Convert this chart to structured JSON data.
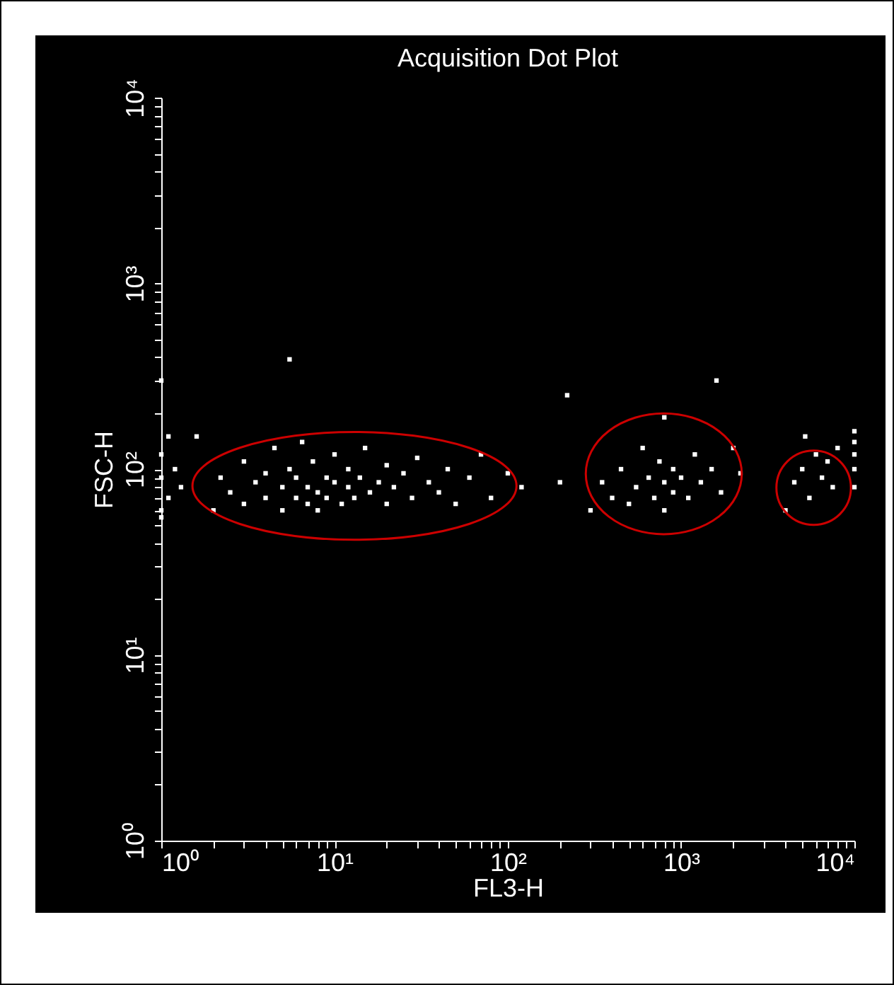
{
  "chart_data": {
    "type": "scatter",
    "title": "Acquisition Dot Plot",
    "xlabel": "FL3-H",
    "ylabel": "FSC-H",
    "log": "xy",
    "grid": false,
    "marker": "square",
    "legend": false,
    "xlim": [
      1,
      10000
    ],
    "ylim": [
      1,
      10000
    ],
    "xticks": [
      {
        "value": 1,
        "label": "10⁰"
      },
      {
        "value": 2,
        "label": null
      },
      {
        "value": 3,
        "label": null
      },
      {
        "value": 4,
        "label": null
      },
      {
        "value": 5,
        "label": null
      },
      {
        "value": 6,
        "label": null
      },
      {
        "value": 7,
        "label": null
      },
      {
        "value": 8,
        "label": null
      },
      {
        "value": 9,
        "label": null
      },
      {
        "value": 10,
        "label": "10¹"
      },
      {
        "value": 20,
        "label": null
      },
      {
        "value": 30,
        "label": null
      },
      {
        "value": 40,
        "label": null
      },
      {
        "value": 50,
        "label": null
      },
      {
        "value": 60,
        "label": null
      },
      {
        "value": 70,
        "label": null
      },
      {
        "value": 80,
        "label": null
      },
      {
        "value": 90,
        "label": null
      },
      {
        "value": 100,
        "label": "10²"
      },
      {
        "value": 200,
        "label": null
      },
      {
        "value": 300,
        "label": null
      },
      {
        "value": 400,
        "label": null
      },
      {
        "value": 500,
        "label": null
      },
      {
        "value": 600,
        "label": null
      },
      {
        "value": 700,
        "label": null
      },
      {
        "value": 800,
        "label": null
      },
      {
        "value": 900,
        "label": null
      },
      {
        "value": 1000,
        "label": "10³"
      },
      {
        "value": 2000,
        "label": null
      },
      {
        "value": 3000,
        "label": null
      },
      {
        "value": 4000,
        "label": null
      },
      {
        "value": 5000,
        "label": null
      },
      {
        "value": 6000,
        "label": null
      },
      {
        "value": 7000,
        "label": null
      },
      {
        "value": 8000,
        "label": null
      },
      {
        "value": 9000,
        "label": null
      },
      {
        "value": 10000,
        "label": "10⁴"
      }
    ],
    "yticks": [
      {
        "value": 1,
        "label": "10⁰"
      },
      {
        "value": 2,
        "label": null
      },
      {
        "value": 3,
        "label": null
      },
      {
        "value": 4,
        "label": null
      },
      {
        "value": 5,
        "label": null
      },
      {
        "value": 6,
        "label": null
      },
      {
        "value": 7,
        "label": null
      },
      {
        "value": 8,
        "label": null
      },
      {
        "value": 9,
        "label": null
      },
      {
        "value": 10,
        "label": "10¹"
      },
      {
        "value": 20,
        "label": null
      },
      {
        "value": 30,
        "label": null
      },
      {
        "value": 40,
        "label": null
      },
      {
        "value": 50,
        "label": null
      },
      {
        "value": 60,
        "label": null
      },
      {
        "value": 70,
        "label": null
      },
      {
        "value": 80,
        "label": null
      },
      {
        "value": 90,
        "label": null
      },
      {
        "value": 100,
        "label": "10²"
      },
      {
        "value": 200,
        "label": null
      },
      {
        "value": 300,
        "label": null
      },
      {
        "value": 400,
        "label": null
      },
      {
        "value": 500,
        "label": null
      },
      {
        "value": 600,
        "label": null
      },
      {
        "value": 700,
        "label": null
      },
      {
        "value": 800,
        "label": null
      },
      {
        "value": 900,
        "label": null
      },
      {
        "value": 1000,
        "label": "10³"
      },
      {
        "value": 2000,
        "label": null
      },
      {
        "value": 3000,
        "label": null
      },
      {
        "value": 4000,
        "label": null
      },
      {
        "value": 5000,
        "label": null
      },
      {
        "value": 6000,
        "label": null
      },
      {
        "value": 7000,
        "label": null
      },
      {
        "value": 8000,
        "label": null
      },
      {
        "value": 9000,
        "label": null
      },
      {
        "value": 10000,
        "label": "10⁴"
      }
    ],
    "series": [
      {
        "color": "#ffffff",
        "x": [
          1,
          1,
          1.1,
          1,
          1.2,
          1.1,
          1,
          1.3,
          1.6,
          2,
          2.2,
          2.5,
          3,
          3,
          3.5,
          4,
          4,
          4.5,
          5,
          5,
          5.5,
          6,
          6,
          6.5,
          7,
          7,
          7.5,
          8,
          8,
          9,
          9,
          10,
          10,
          11,
          12,
          12,
          13,
          14,
          15,
          16,
          18,
          20,
          20,
          22,
          25,
          28,
          30,
          35,
          40,
          45,
          50,
          60,
          70,
          80,
          100,
          120,
          5.5,
          1,
          220,
          200,
          300,
          350,
          400,
          450,
          500,
          550,
          600,
          650,
          700,
          750,
          800,
          800,
          900,
          900,
          1000,
          1100,
          1200,
          1300,
          1500,
          1700,
          2000,
          2200,
          1600,
          800,
          4000,
          4500,
          5000,
          5500,
          6000,
          6500,
          7000,
          7500,
          5200,
          8000,
          10000,
          10000,
          10000,
          10000,
          10000
        ],
        "values": [
          120,
          90,
          70,
          60,
          100,
          150,
          55,
          80,
          150,
          60,
          90,
          75,
          110,
          65,
          85,
          70,
          95,
          130,
          60,
          80,
          100,
          70,
          90,
          140,
          65,
          80,
          110,
          75,
          60,
          90,
          70,
          85,
          120,
          65,
          80,
          100,
          70,
          90,
          130,
          75,
          85,
          65,
          105,
          80,
          95,
          70,
          115,
          85,
          75,
          100,
          65,
          90,
          120,
          70,
          95,
          80,
          390,
          300,
          250,
          85,
          60,
          85,
          70,
          100,
          65,
          80,
          130,
          90,
          70,
          110,
          60,
          85,
          100,
          75,
          90,
          70,
          120,
          85,
          100,
          75,
          130,
          95,
          300,
          190,
          60,
          85,
          100,
          70,
          120,
          90,
          110,
          80,
          150,
          130,
          80,
          100,
          120,
          140,
          160
        ]
      }
    ]
  }
}
